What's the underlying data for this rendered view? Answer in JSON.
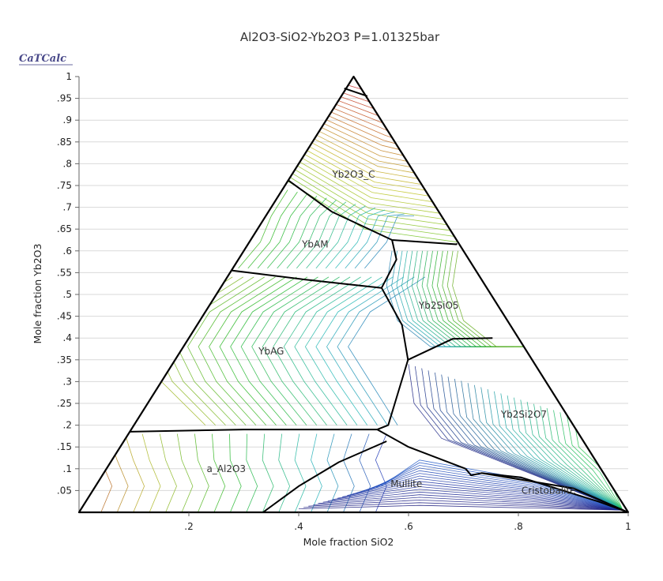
{
  "header": {
    "brand": "CaTCalc"
  },
  "chart_data": {
    "type": "ternary-phase-diagram",
    "title": "Al2O3-SiO2-Yb2O3 P=1.01325bar",
    "xlabel": "Mole fraction SiO2",
    "ylabel": "Mole fraction Yb2O3",
    "xlim": [
      0,
      1
    ],
    "ylim": [
      0,
      1
    ],
    "grid": "horizontal",
    "x_ticks": [
      {
        "v": 0.2,
        "label": ".2"
      },
      {
        "v": 0.4,
        "label": ".4"
      },
      {
        "v": 0.6,
        "label": ".6"
      },
      {
        "v": 0.8,
        "label": ".8"
      },
      {
        "v": 1.0,
        "label": "1"
      }
    ],
    "y_ticks": [
      {
        "v": 0.05,
        "label": ".05"
      },
      {
        "v": 0.1,
        "label": ".1"
      },
      {
        "v": 0.15,
        "label": ".15"
      },
      {
        "v": 0.2,
        "label": ".2"
      },
      {
        "v": 0.25,
        "label": ".25"
      },
      {
        "v": 0.3,
        "label": ".3"
      },
      {
        "v": 0.35,
        "label": ".35"
      },
      {
        "v": 0.4,
        "label": ".4"
      },
      {
        "v": 0.45,
        "label": ".45"
      },
      {
        "v": 0.5,
        "label": ".5"
      },
      {
        "v": 0.55,
        "label": ".55"
      },
      {
        "v": 0.6,
        "label": ".6"
      },
      {
        "v": 0.65,
        "label": ".65"
      },
      {
        "v": 0.7,
        "label": ".7"
      },
      {
        "v": 0.75,
        "label": ".75"
      },
      {
        "v": 0.8,
        "label": ".8"
      },
      {
        "v": 0.85,
        "label": ".85"
      },
      {
        "v": 0.9,
        "label": ".9"
      },
      {
        "v": 0.95,
        "label": ".95"
      },
      {
        "v": 1.0,
        "label": "1"
      }
    ],
    "boundaries": [
      [
        [
          0.483,
          0.973
        ],
        [
          0.525,
          0.955
        ]
      ],
      [
        [
          0.381,
          0.762
        ],
        [
          0.46,
          0.69
        ],
        [
          0.57,
          0.625
        ],
        [
          0.687,
          0.615
        ],
        [
          0.688,
          0.617
        ]
      ],
      [
        [
          0.57,
          0.625
        ],
        [
          0.578,
          0.58
        ],
        [
          0.551,
          0.515
        ]
      ],
      [
        [
          0.278,
          0.555
        ],
        [
          0.406,
          0.535
        ],
        [
          0.551,
          0.515
        ]
      ],
      [
        [
          0.551,
          0.515
        ],
        [
          0.588,
          0.43
        ],
        [
          0.599,
          0.35
        ]
      ],
      [
        [
          0.599,
          0.35
        ],
        [
          0.68,
          0.398
        ],
        [
          0.753,
          0.4
        ]
      ],
      [
        [
          0.599,
          0.35
        ],
        [
          0.563,
          0.2
        ],
        [
          0.543,
          0.19
        ]
      ],
      [
        [
          0.093,
          0.185
        ],
        [
          0.3,
          0.19
        ],
        [
          0.543,
          0.19
        ]
      ],
      [
        [
          0.543,
          0.19
        ],
        [
          0.6,
          0.15
        ],
        [
          0.704,
          0.1
        ]
      ],
      [
        [
          0.56,
          0.163
        ],
        [
          0.473,
          0.115
        ],
        [
          0.4,
          0.06
        ],
        [
          0.335,
          0.0
        ]
      ],
      [
        [
          0.704,
          0.1
        ],
        [
          0.714,
          0.085
        ],
        [
          0.733,
          0.09
        ],
        [
          0.805,
          0.08
        ],
        [
          0.945,
          0.025
        ],
        [
          1.0,
          0.0
        ]
      ],
      [
        [
          0.733,
          0.09
        ],
        [
          0.9,
          0.055
        ],
        [
          1.0,
          0.0
        ]
      ]
    ],
    "regions": [
      {
        "name": "Yb2O3_C",
        "x": 0.5,
        "y": 0.775
      },
      {
        "name": "YbAM",
        "x": 0.43,
        "y": 0.615
      },
      {
        "name": "Yb2SiO5",
        "x": 0.655,
        "y": 0.475
      },
      {
        "name": "YbAG",
        "x": 0.35,
        "y": 0.37
      },
      {
        "name": "Yb2Si2O7",
        "x": 0.81,
        "y": 0.225
      },
      {
        "name": "a_Al2O3",
        "x": 0.268,
        "y": 0.1
      },
      {
        "name": "Mullite",
        "x": 0.596,
        "y": 0.065
      },
      {
        "name": "Cristobalite",
        "x": 0.855,
        "y": 0.05
      }
    ]
  }
}
